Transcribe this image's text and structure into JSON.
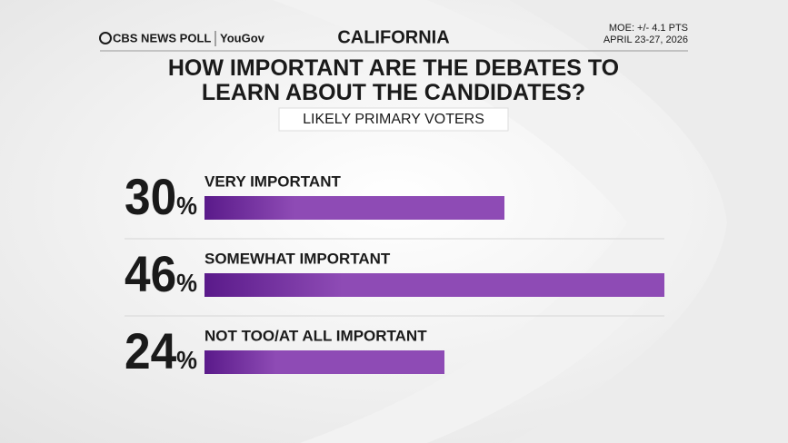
{
  "header": {
    "brand": "CBS NEWS POLL",
    "partner": "YouGov",
    "region": "CALIFORNIA",
    "moe": "MOE: +/- 4.1 PTS",
    "dates": "APRIL 23-27, 2026"
  },
  "chart_data": {
    "type": "bar",
    "orientation": "horizontal",
    "title": "HOW IMPORTANT ARE THE DEBATES TO LEARN ABOUT THE CANDIDATES?",
    "subtitle": "LIKELY PRIMARY VOTERS",
    "categories": [
      "VERY IMPORTANT",
      "SOMEWHAT IMPORTANT",
      "NOT TOO/AT ALL IMPORTANT"
    ],
    "values": [
      30,
      46,
      24
    ],
    "value_labels": [
      "30%",
      "46%",
      "24%"
    ],
    "color": "#8e4bb5"
  }
}
